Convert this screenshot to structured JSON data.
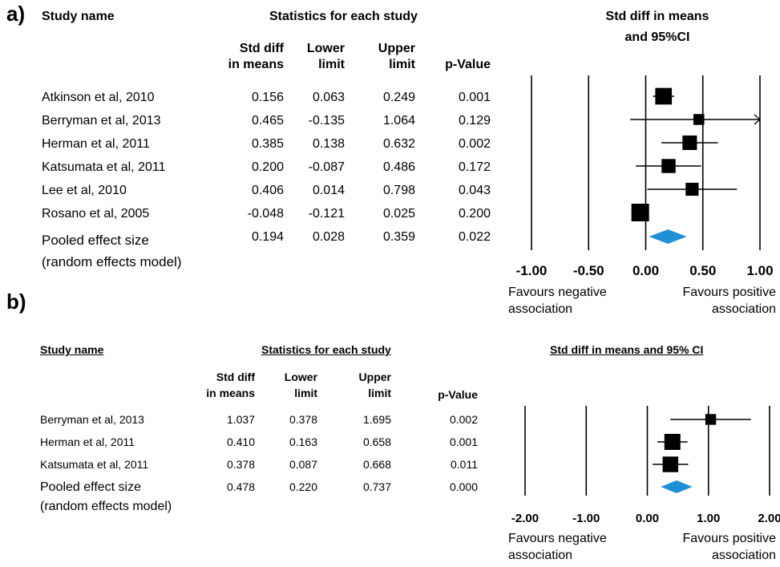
{
  "panels": [
    {
      "label": "a)",
      "study_name_header": "Study name",
      "stats_header": "Statistics for each study",
      "plot_header": [
        "Std diff in means",
        "and 95%CI"
      ],
      "col_headers": [
        [
          "Std diff",
          "in means"
        ],
        [
          "Lower",
          "limit"
        ],
        [
          "Upper",
          "limit"
        ],
        [
          "",
          "p-Value"
        ]
      ],
      "rows": [
        [
          "Atkinson et al, 2010",
          "0.156",
          "0.063",
          "0.249",
          "0.001"
        ],
        [
          "Berryman et al, 2013",
          "0.465",
          "-0.135",
          "1.064",
          "0.129"
        ],
        [
          "Herman et al, 2011",
          "0.385",
          "0.138",
          "0.632",
          "0.002"
        ],
        [
          "Katsumata et al, 2011",
          "0.200",
          "-0.087",
          "0.486",
          "0.172"
        ],
        [
          "Lee et al, 2010",
          "0.406",
          "0.014",
          "0.798",
          "0.043"
        ],
        [
          "Rosano et al, 2005",
          "-0.048",
          "-0.121",
          "0.025",
          "0.200"
        ]
      ],
      "pooled": [
        "Pooled effect size",
        "0.194",
        "0.028",
        "0.359",
        "0.022"
      ],
      "pooled_note": "(random effects model)",
      "favours_left": [
        "Favours negative",
        "association"
      ],
      "favours_right": [
        "Favours positive",
        "association"
      ]
    },
    {
      "label": "b)",
      "study_name_header": "Study name",
      "stats_header": "Statistics for each study",
      "plot_header": [
        "Std diff in means and 95% CI"
      ],
      "col_headers": [
        [
          "Std diff",
          "in means"
        ],
        [
          "Lower",
          "limit"
        ],
        [
          "Upper",
          "limit"
        ],
        [
          "",
          "p-Value"
        ]
      ],
      "rows": [
        [
          "Berryman et al, 2013",
          "1.037",
          "0.378",
          "1.695",
          "0.002"
        ],
        [
          "Herman et al, 2011",
          "0.410",
          "0.163",
          "0.658",
          "0.001"
        ],
        [
          "Katsumata et al, 2011",
          "0.378",
          "0.087",
          "0.668",
          "0.011"
        ]
      ],
      "pooled": [
        "Pooled effect size",
        "0.478",
        "0.220",
        "0.737",
        "0.000"
      ],
      "pooled_note": "(random effects model)",
      "favours_left": [
        "Favours negative",
        "association"
      ],
      "favours_right": [
        "Favours positive",
        "association"
      ]
    }
  ],
  "chart_data": [
    {
      "type": "forest",
      "xlim": [
        -1.0,
        1.0
      ],
      "xticks": [
        -1.0,
        -0.5,
        0.0,
        0.5,
        1.0
      ],
      "tick_labels": [
        "-1.00",
        "-0.50",
        "0.00",
        "0.50",
        "1.00"
      ],
      "studies": [
        {
          "name": "Atkinson et al, 2010",
          "est": 0.156,
          "lower": 0.063,
          "upper": 0.249,
          "weight": 0.9
        },
        {
          "name": "Berryman et al, 2013",
          "est": 0.465,
          "lower": -0.135,
          "upper": 1.064,
          "weight": 0.35
        },
        {
          "name": "Herman et al, 2011",
          "est": 0.385,
          "lower": 0.138,
          "upper": 0.632,
          "weight": 0.7
        },
        {
          "name": "Katsumata et al, 2011",
          "est": 0.2,
          "lower": -0.087,
          "upper": 0.486,
          "weight": 0.65
        },
        {
          "name": "Lee et al, 2010",
          "est": 0.406,
          "lower": 0.014,
          "upper": 0.798,
          "weight": 0.55
        },
        {
          "name": "Rosano et al, 2005",
          "est": -0.048,
          "lower": -0.121,
          "upper": 0.025,
          "weight": 1.0
        }
      ],
      "pooled": {
        "est": 0.194,
        "lower": 0.028,
        "upper": 0.359
      },
      "marker_color": "#000000",
      "diamond_color": "#1f8fd8"
    },
    {
      "type": "forest",
      "xlim": [
        -2.0,
        2.0
      ],
      "xticks": [
        -2.0,
        -1.0,
        0.0,
        1.0,
        2.0
      ],
      "tick_labels": [
        "-2.00",
        "-1.00",
        "0.00",
        "1.00",
        "2.00"
      ],
      "studies": [
        {
          "name": "Berryman et al, 2013",
          "est": 1.037,
          "lower": 0.378,
          "upper": 1.695,
          "weight": 0.4
        },
        {
          "name": "Herman et al, 2011",
          "est": 0.41,
          "lower": 0.163,
          "upper": 0.658,
          "weight": 1.0
        },
        {
          "name": "Katsumata et al, 2011",
          "est": 0.378,
          "lower": 0.087,
          "upper": 0.668,
          "weight": 0.95
        }
      ],
      "pooled": {
        "est": 0.478,
        "lower": 0.22,
        "upper": 0.737
      },
      "marker_color": "#000000",
      "diamond_color": "#1f8fd8"
    }
  ]
}
